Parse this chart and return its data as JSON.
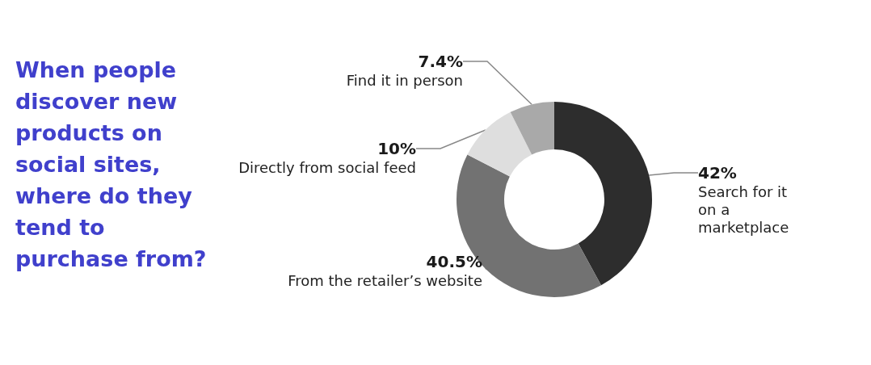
{
  "chart_data": {
    "type": "donut",
    "title": "When people discover new products on social sites, where do they tend to purchase from?",
    "categories": [
      "Search for it on a marketplace",
      "From the retailer’s website",
      "Directly from social feed",
      "Find it in person"
    ],
    "values": [
      42,
      40.5,
      10,
      7.4
    ],
    "value_labels": [
      "42%",
      "40.5%",
      "10%",
      "7.4%"
    ],
    "colors": [
      "#2d2d2d",
      "#727272",
      "#dedede",
      "#a9a9a9"
    ],
    "legend": false
  }
}
